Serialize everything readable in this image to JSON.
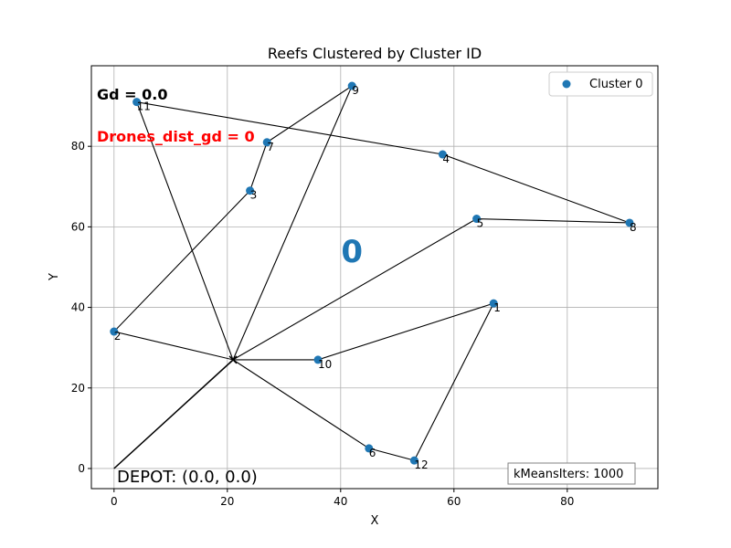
{
  "chart_data": {
    "type": "scatter",
    "title": "Reefs Clustered by Cluster ID",
    "xlabel": "X",
    "ylabel": "Y",
    "xlim": [
      -4,
      96
    ],
    "ylim": [
      -5,
      100
    ],
    "xticks": [
      0,
      20,
      40,
      60,
      80
    ],
    "yticks": [
      0,
      20,
      40,
      60,
      80
    ],
    "grid": true,
    "legend": {
      "position": "top-right",
      "entries": [
        "Cluster 0"
      ]
    },
    "series": [
      {
        "name": "Cluster 0",
        "color": "#1f77b4",
        "points": [
          {
            "label": "1",
            "x": 67,
            "y": 41
          },
          {
            "label": "2",
            "x": 0,
            "y": 34
          },
          {
            "label": "3",
            "x": 24,
            "y": 69
          },
          {
            "label": "4",
            "x": 58,
            "y": 78
          },
          {
            "label": "5",
            "x": 64,
            "y": 62
          },
          {
            "label": "6",
            "x": 45,
            "y": 5
          },
          {
            "label": "7",
            "x": 27,
            "y": 81
          },
          {
            "label": "8",
            "x": 91,
            "y": 61
          },
          {
            "label": "9",
            "x": 42,
            "y": 95
          },
          {
            "label": "10",
            "x": 36,
            "y": 27
          },
          {
            "label": "11",
            "x": 4,
            "y": 91
          },
          {
            "label": "12",
            "x": 53,
            "y": 2
          }
        ]
      }
    ],
    "hub": {
      "x": 21,
      "y": 27
    },
    "depot": {
      "x": 0,
      "y": 0
    },
    "routes": [
      [
        [
          21,
          27
        ],
        [
          0,
          34
        ],
        [
          24,
          69
        ],
        [
          27,
          81
        ],
        [
          42,
          95
        ],
        [
          21,
          27
        ]
      ],
      [
        [
          21,
          27
        ],
        [
          4,
          91
        ],
        [
          58,
          78
        ],
        [
          91,
          61
        ],
        [
          64,
          62
        ],
        [
          21,
          27
        ]
      ],
      [
        [
          21,
          27
        ],
        [
          36,
          27
        ],
        [
          67,
          41
        ],
        [
          53,
          2
        ],
        [
          45,
          5
        ],
        [
          21,
          27
        ]
      ]
    ],
    "depot_links": [
      [
        [
          0,
          0
        ],
        [
          21,
          27
        ]
      ],
      [
        [
          0,
          0
        ],
        [
          21.3,
          27.3
        ]
      ]
    ],
    "cluster_label": {
      "text": "0",
      "x": 42,
      "y": 54,
      "color": "#1f77b4"
    },
    "annotations": {
      "gd": "Gd = 0.0",
      "drones": "Drones_dist_gd = 0",
      "drones_color": "#ff0000",
      "depot": "DEPOT: (0.0, 0.0)",
      "kmeans": "kMeansIters: 1000"
    }
  }
}
